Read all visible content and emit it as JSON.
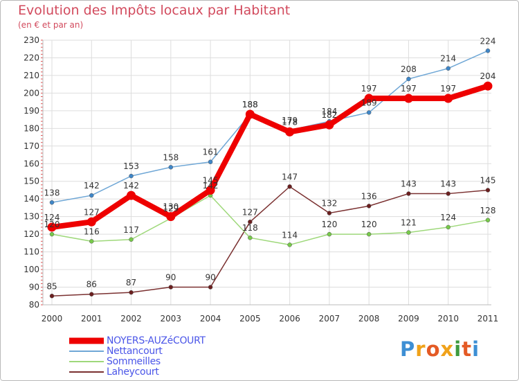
{
  "header": {
    "title": "Evolution des Impôts locaux par Habitant",
    "subtitle": "(en € et par an)"
  },
  "logo": {
    "text": "Proxiti"
  },
  "colors": {
    "frame": "#b8b8b8",
    "grid": "#dddddd",
    "axis_text": "#333333",
    "title": "#d24a5d",
    "legend_text": "#4a55e8"
  },
  "chart_data": {
    "type": "line",
    "title": "Evolution des Impôts locaux par Habitant",
    "subtitle": "(en € et par an)",
    "xlabel": "",
    "ylabel": "",
    "x": [
      "2000",
      "2001",
      "2002",
      "2003",
      "2004",
      "2005",
      "2006",
      "2007",
      "2008",
      "2009",
      "2010",
      "2011"
    ],
    "ylim": [
      80,
      230
    ],
    "yticks": [
      80,
      90,
      100,
      110,
      120,
      130,
      140,
      150,
      160,
      170,
      180,
      190,
      200,
      210,
      220,
      230
    ],
    "grid": true,
    "legend_position": "bottom-left",
    "series": [
      {
        "name": "NOYERS-AUZéCOURT",
        "color": "#ee0000",
        "marker_color": "#ee0000",
        "style": "thick",
        "values": [
          124,
          127,
          142,
          130,
          145,
          188,
          178,
          182,
          197,
          197,
          197,
          204
        ]
      },
      {
        "name": "Nettancourt",
        "color": "#6fa7d6",
        "marker_color": "#3e86c8",
        "style": "thin",
        "values": [
          138,
          142,
          153,
          158,
          161,
          188,
          179,
          184,
          189,
          208,
          214,
          224
        ]
      },
      {
        "name": "Sommeilles",
        "color": "#9ed87a",
        "marker_color": "#77c94a",
        "style": "thin",
        "values": [
          120,
          116,
          117,
          129,
          142,
          118,
          114,
          120,
          120,
          121,
          124,
          128
        ]
      },
      {
        "name": "Laheycourt",
        "color": "#7a3030",
        "marker_color": "#6b1f1f",
        "style": "thin",
        "values": [
          85,
          86,
          87,
          90,
          90,
          127,
          147,
          132,
          136,
          143,
          143,
          145
        ]
      }
    ]
  }
}
